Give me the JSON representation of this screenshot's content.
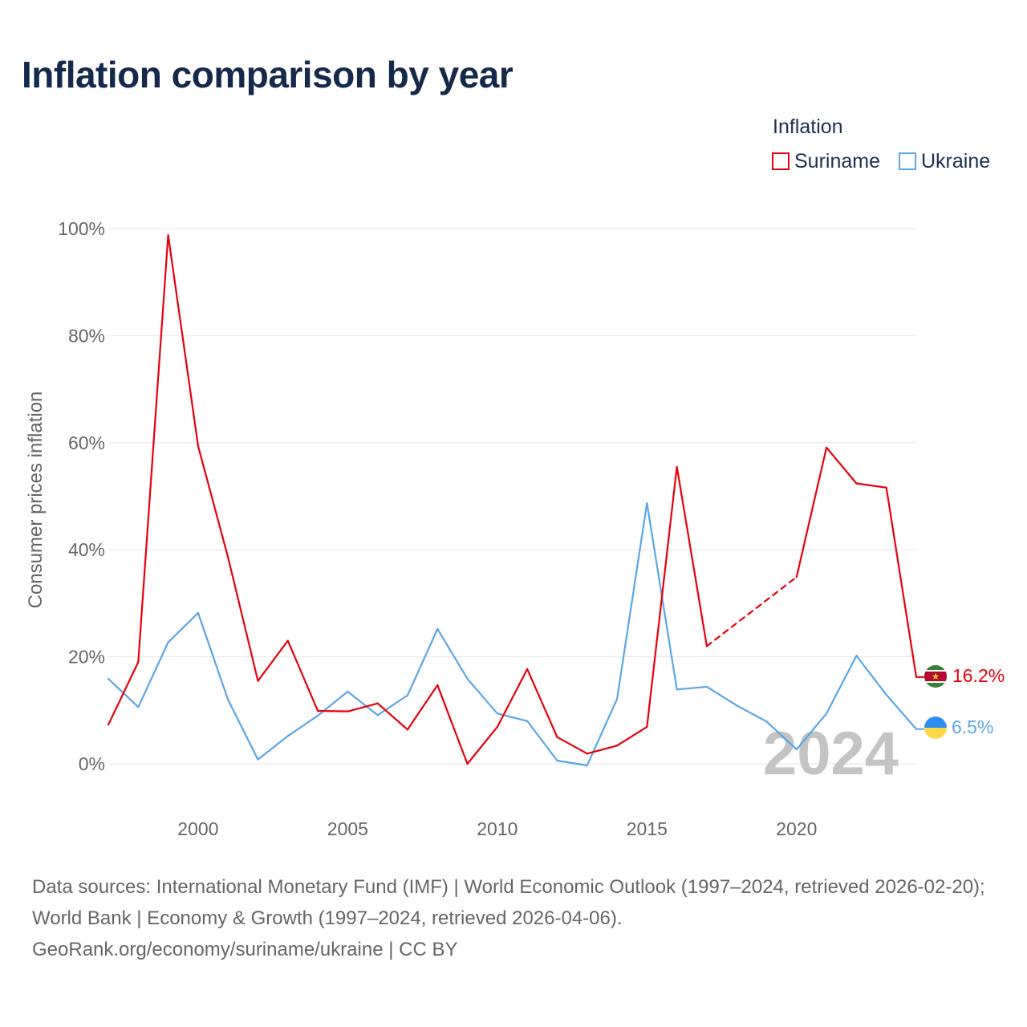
{
  "title": "Inflation comparison by year",
  "legend": {
    "title": "Inflation",
    "items": [
      {
        "name": "Suriname",
        "color": "#e8000b"
      },
      {
        "name": "Ukraine",
        "color": "#5aa6e6"
      }
    ]
  },
  "footer": {
    "line1": "Data sources: International Monetary Fund (IMF) | World Economic Outlook (1997–2024, retrieved 2026-02-20); World Bank | Economy & Growth (1997–2024, retrieved 2026-04-06).",
    "line2": "GeoRank.org/economy/suriname/ukraine | CC BY"
  },
  "chart_data": {
    "type": "line",
    "title": "Inflation comparison by year",
    "xlabel": "",
    "ylabel": "Consumer prices inflation",
    "xlim": [
      1997,
      2024
    ],
    "ylim": [
      -8,
      100
    ],
    "y_ticks": [
      0,
      20,
      40,
      60,
      80,
      100
    ],
    "y_tick_labels": [
      "0%",
      "20%",
      "40%",
      "60%",
      "80%",
      "100%"
    ],
    "x_ticks": [
      2000,
      2005,
      2010,
      2015,
      2020
    ],
    "x_tick_labels": [
      "2000",
      "2005",
      "2010",
      "2015",
      "2020"
    ],
    "year_watermark": "2024",
    "grid": true,
    "legend_position": "top-right",
    "series": [
      {
        "name": "Suriname",
        "color": "#e8000b",
        "end_label": "16.2%",
        "x": [
          1997,
          1998,
          1999,
          2000,
          2001,
          2002,
          2003,
          2004,
          2005,
          2006,
          2007,
          2008,
          2009,
          2010,
          2011,
          2012,
          2013,
          2014,
          2015,
          2016,
          2017,
          2020,
          2021,
          2022,
          2023,
          2024
        ],
        "y": [
          7.3,
          19.0,
          98.8,
          59.4,
          38.6,
          15.5,
          23.0,
          9.9,
          9.8,
          11.3,
          6.4,
          14.7,
          0.0,
          6.9,
          17.7,
          5.0,
          1.9,
          3.4,
          6.9,
          55.5,
          22.0,
          34.9,
          59.1,
          52.4,
          51.6,
          16.2
        ],
        "dashed_segments": [
          [
            2017,
            2020
          ]
        ]
      },
      {
        "name": "Ukraine",
        "color": "#5aa6e6",
        "end_label": "6.5%",
        "x": [
          1997,
          1998,
          1999,
          2000,
          2001,
          2002,
          2003,
          2004,
          2005,
          2006,
          2007,
          2008,
          2009,
          2010,
          2011,
          2012,
          2013,
          2014,
          2015,
          2016,
          2017,
          2018,
          2019,
          2020,
          2021,
          2022,
          2023,
          2024
        ],
        "y": [
          15.9,
          10.6,
          22.7,
          28.2,
          12.0,
          0.8,
          5.2,
          9.0,
          13.5,
          9.1,
          12.8,
          25.2,
          15.9,
          9.4,
          8.0,
          0.6,
          -0.3,
          12.1,
          48.7,
          13.9,
          14.4,
          10.9,
          7.9,
          2.7,
          9.4,
          20.2,
          12.9,
          6.5
        ]
      }
    ]
  }
}
